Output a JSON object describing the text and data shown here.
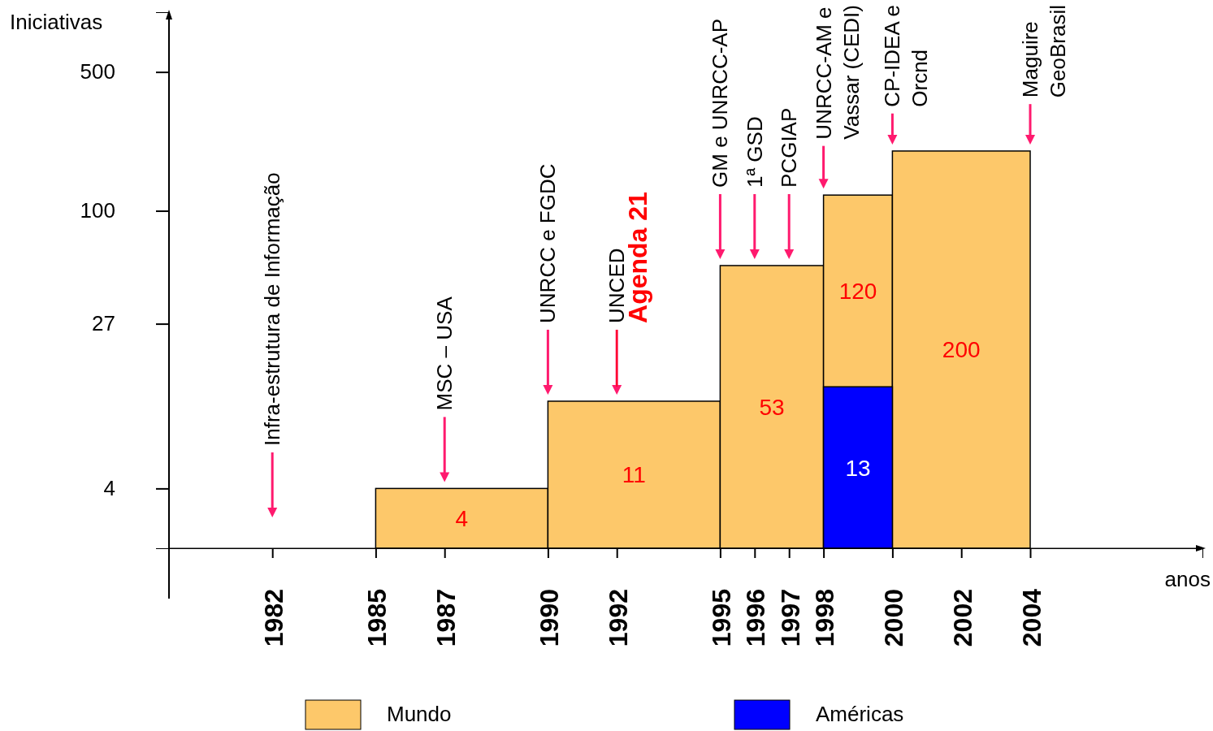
{
  "chart_data": {
    "type": "histogram",
    "xlabel": "anos",
    "ylabel": "Iniciativas",
    "bins": [
      1985,
      1990,
      1995,
      1998,
      2000,
      2004
    ],
    "series": [
      {
        "name": "Mundo",
        "color": "#fdc86a",
        "values": [
          4,
          11,
          53,
          120,
          200
        ]
      },
      {
        "name": "Américas",
        "color": "#0000ff",
        "values": [
          null,
          null,
          null,
          13,
          null
        ]
      }
    ],
    "xlim": [
      1979,
      2009
    ],
    "xticks": [
      1982,
      1985,
      1987,
      1990,
      1992,
      1995,
      1996,
      1997,
      1998,
      2000,
      2002,
      2004
    ],
    "ylim": [
      2,
      1000
    ],
    "yticks": [
      4,
      27,
      100,
      500
    ],
    "log": true,
    "data_labels": true,
    "legend": "bottom",
    "ref_lines": [
      {
        "axis": "x",
        "value": 1982,
        "label": "Infra-estrutura de Informação",
        "color": "#ff1a6e"
      },
      {
        "axis": "x",
        "value": 1987,
        "label": "MSC – USA",
        "color": "#ff1a6e"
      },
      {
        "axis": "x",
        "value": 1990,
        "label": "UNRCC e FGDC",
        "color": "#ff1a6e"
      },
      {
        "axis": "x",
        "value": 1992,
        "label": "UNCED",
        "color": "#ff1a6e"
      },
      {
        "axis": "x",
        "value": 1992,
        "label": "Agenda 21",
        "color": "#ff0000"
      },
      {
        "axis": "x",
        "value": 1995,
        "label": "GM e UNRCC-AP",
        "color": "#ff1a6e"
      },
      {
        "axis": "x",
        "value": 1996,
        "label": "1ª GSD",
        "color": "#ff1a6e"
      },
      {
        "axis": "x",
        "value": 1997,
        "label": "PCGIAP",
        "color": "#ff1a6e"
      },
      {
        "axis": "x",
        "value": 1998,
        "label": "UNRCC-AM e\nVassar (CEDI)",
        "color": "#ff1a6e"
      },
      {
        "axis": "x",
        "value": 2000,
        "label": "CP-IDEA e\nOrcnd",
        "color": "#ff1a6e"
      },
      {
        "axis": "x",
        "value": 2004,
        "label": "Maguire\nGeoBrasil",
        "color": "#ff1a6e"
      }
    ]
  }
}
